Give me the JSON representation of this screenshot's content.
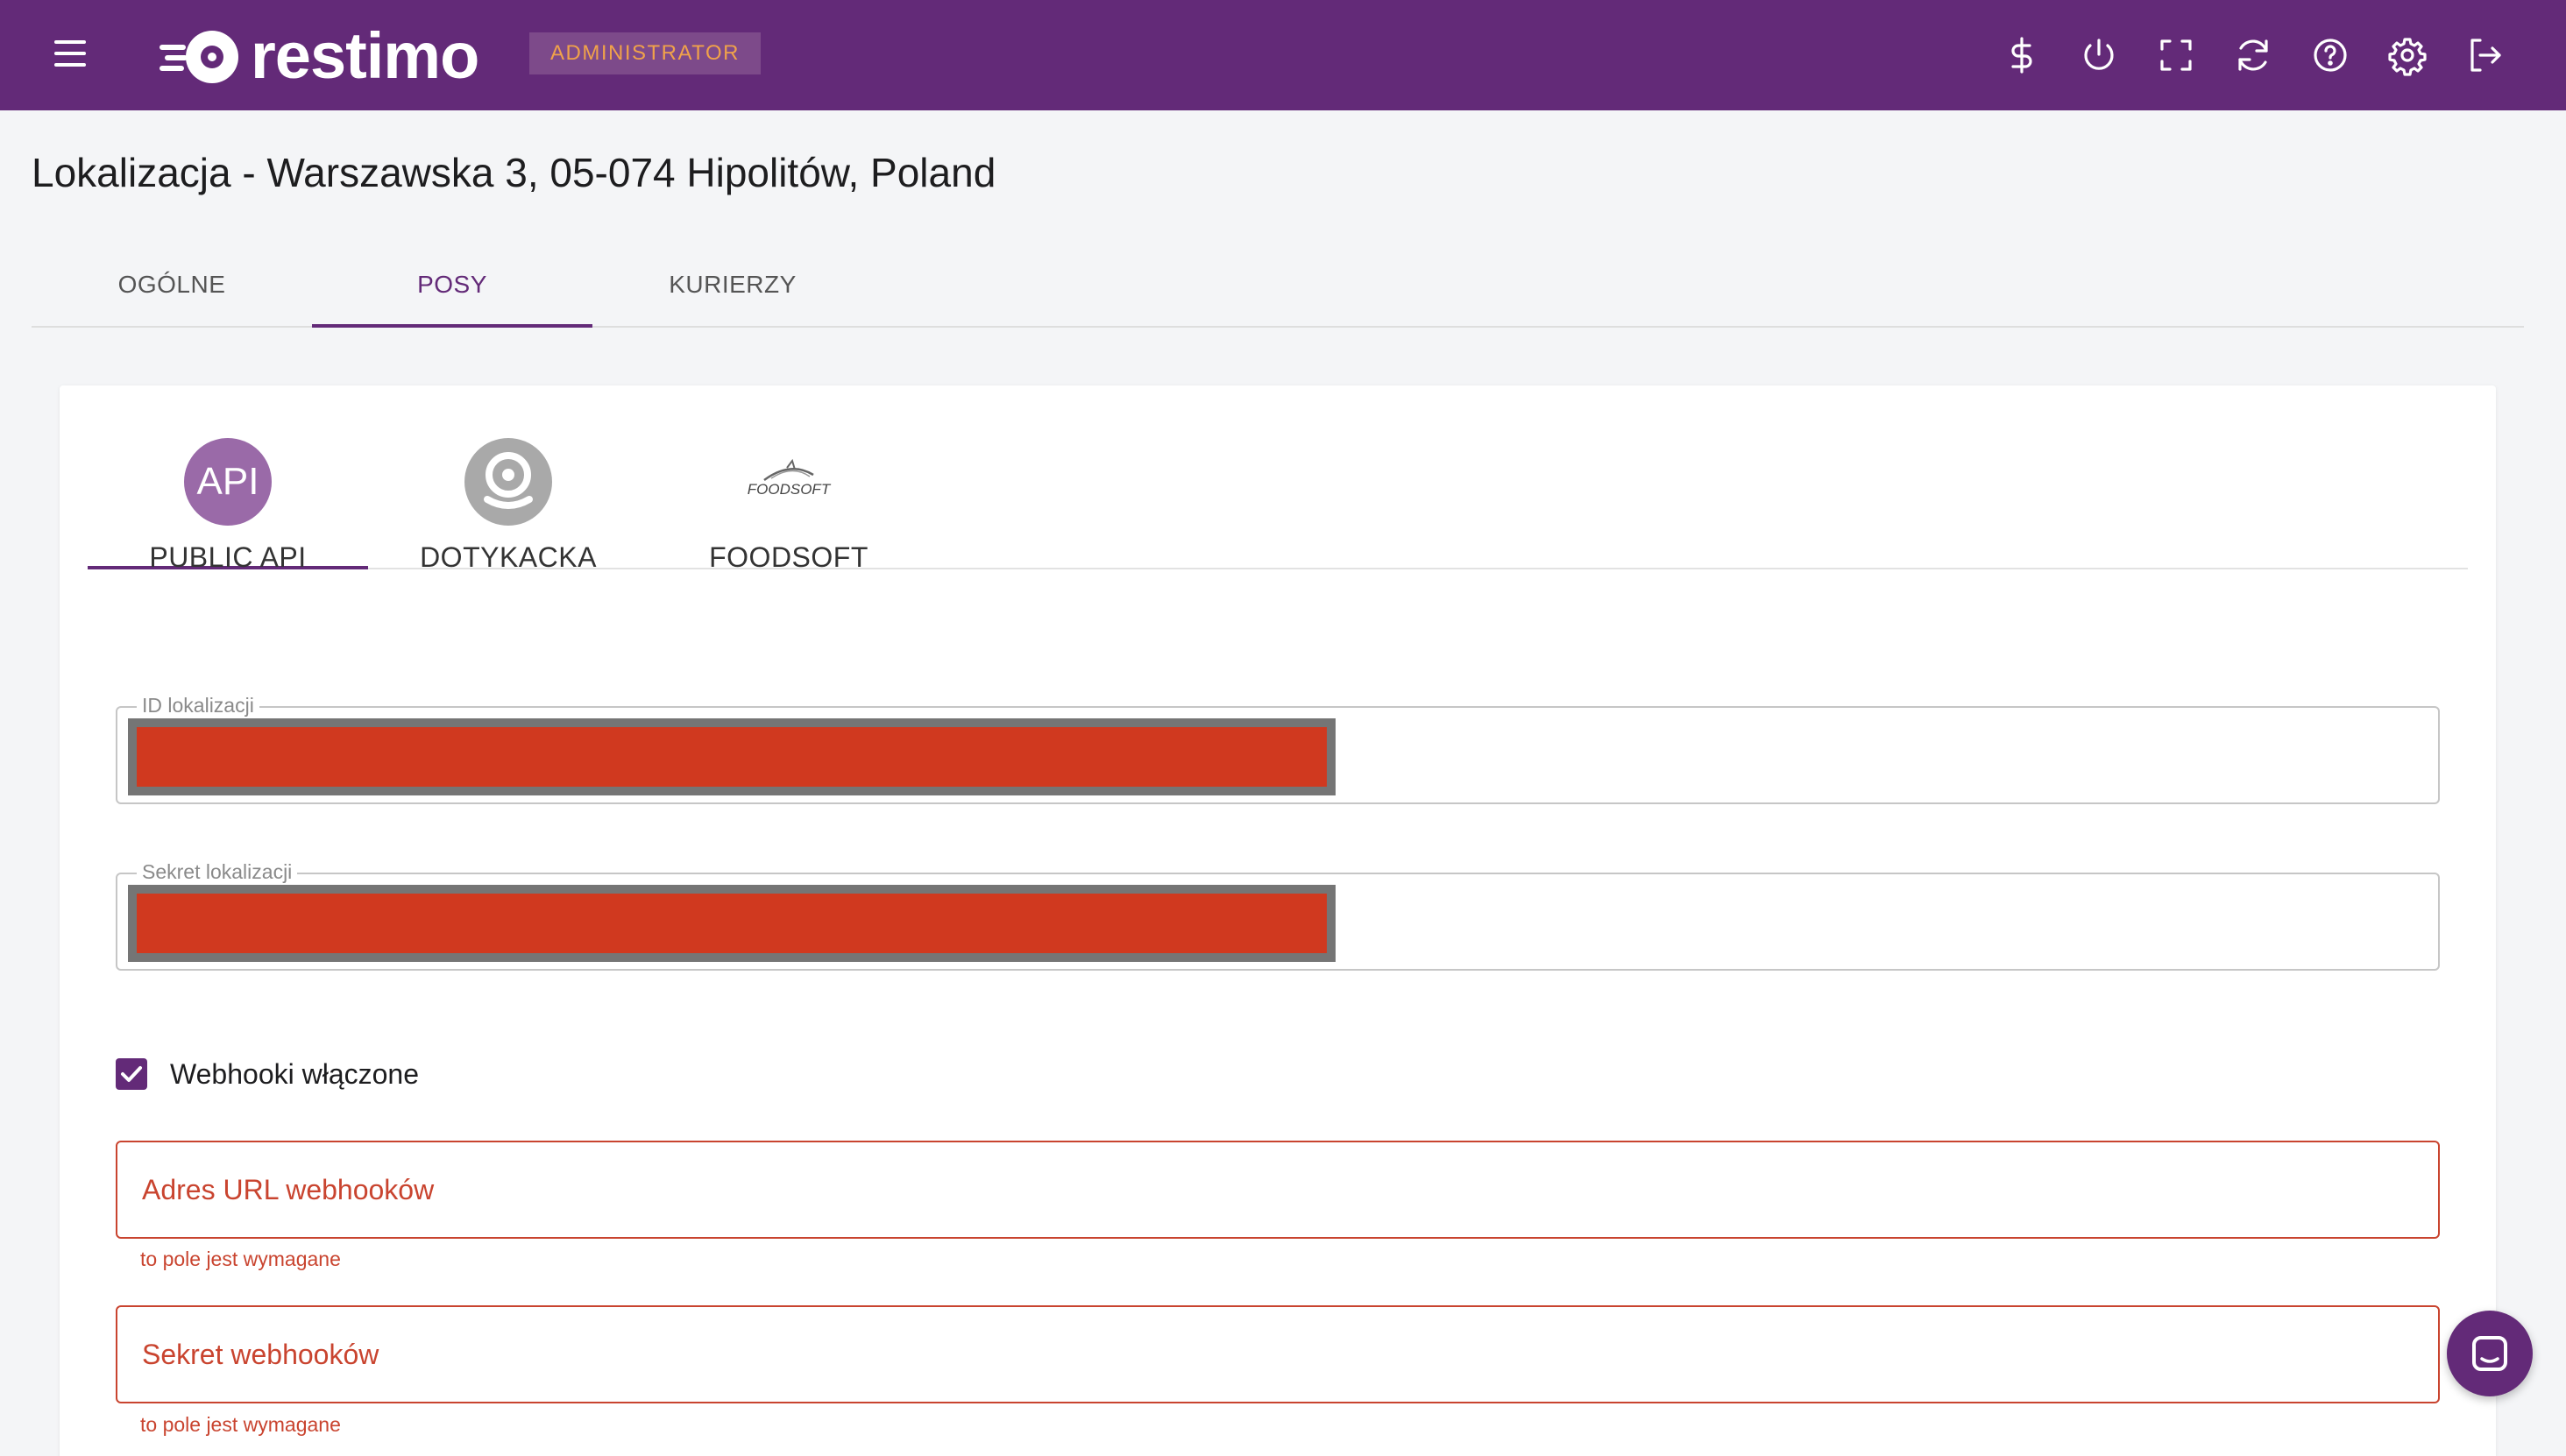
{
  "header": {
    "brand": "restimo",
    "role_badge": "ADMINISTRATOR",
    "icons": [
      "menu-icon",
      "dollar-icon",
      "power-icon",
      "fullscreen-icon",
      "refresh-icon",
      "help-icon",
      "gear-icon",
      "logout-icon"
    ]
  },
  "page": {
    "title": "Lokalizacja - Warszawska 3, 05-074 Hipolitów, Poland"
  },
  "main_tabs": [
    {
      "label": "OGÓLNE",
      "active": false
    },
    {
      "label": "POSY",
      "active": true
    },
    {
      "label": "KURIERZY",
      "active": false
    }
  ],
  "pos_tabs": [
    {
      "label": "PUBLIC API",
      "icon_text": "API",
      "active": true
    },
    {
      "label": "DOTYKACKA",
      "active": false
    },
    {
      "label": "FOODSOFT",
      "logo_text": "FOODSOFT",
      "active": false
    }
  ],
  "form": {
    "location_id": {
      "label": "ID lokalizacji",
      "value_redacted": true
    },
    "location_secret": {
      "label": "Sekret lokalizacji",
      "value_redacted": true
    },
    "webhooks_enabled": {
      "label": "Webhooki włączone",
      "checked": true
    },
    "webhook_url": {
      "placeholder": "Adres URL webhooków",
      "error": "to pole jest wymagane"
    },
    "webhook_secret": {
      "placeholder": "Sekret webhooków",
      "error": "to pole jest wymagane"
    }
  },
  "colors": {
    "brand_purple": "#632a78",
    "badge_text": "#f0a24a",
    "error_red": "#c9442f",
    "redaction_red": "#d0391f"
  }
}
